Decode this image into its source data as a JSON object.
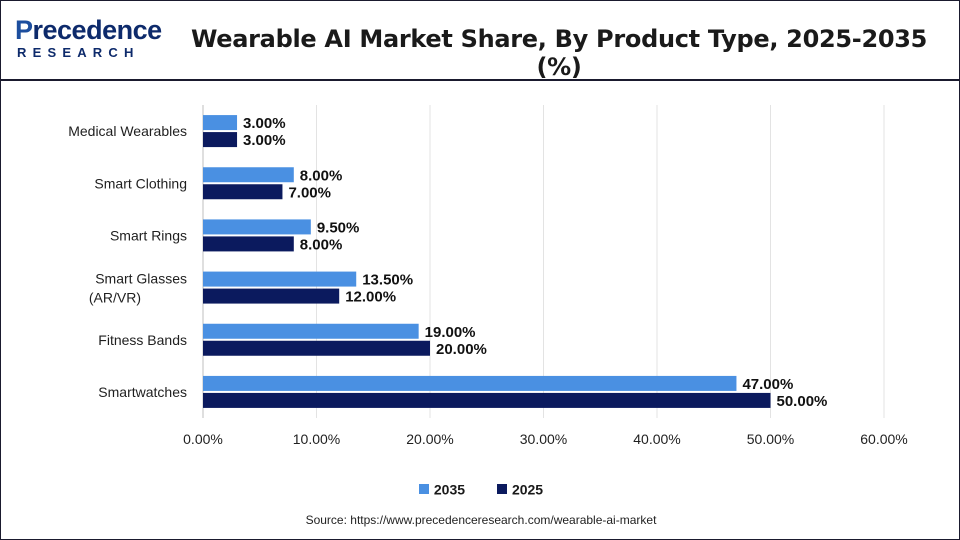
{
  "header": {
    "logo_main": "Precedence",
    "logo_sub": "RESEARCH",
    "title": "Wearable AI Market Share, By Product Type, 2025-2035 (%)"
  },
  "colors": {
    "series_2035": "#4a90e2",
    "series_2025": "#0b1a5e",
    "grid": "#e3e3e3",
    "axis": "#bfbfbf"
  },
  "chart_data": {
    "type": "bar",
    "orientation": "horizontal",
    "categories": [
      "Medical Wearables",
      "Smart Clothing",
      "Smart Rings",
      "Smart Glasses (AR/VR)",
      "Fitness Bands",
      "Smartwatches"
    ],
    "series": [
      {
        "name": "2035",
        "values": [
          3.0,
          8.0,
          9.5,
          13.5,
          19.0,
          47.0
        ],
        "labels": [
          "3.00%",
          "8.00%",
          "9.50%",
          "13.50%",
          "19.00%",
          "47.00%"
        ]
      },
      {
        "name": "2025",
        "values": [
          3.0,
          7.0,
          8.0,
          12.0,
          20.0,
          50.0
        ],
        "labels": [
          "3.00%",
          "7.00%",
          "8.00%",
          "12.00%",
          "20.00%",
          "50.00%"
        ]
      }
    ],
    "xlim": [
      0,
      60
    ],
    "xticks": [
      "0.00%",
      "10.00%",
      "20.00%",
      "30.00%",
      "40.00%",
      "50.00%",
      "60.00%"
    ],
    "grid": true,
    "legend_position": "bottom"
  },
  "legend": [
    {
      "label": "2035"
    },
    {
      "label": "2025"
    }
  ],
  "footer": {
    "source": "Source: https://www.precedenceresearch.com/wearable-ai-market"
  }
}
